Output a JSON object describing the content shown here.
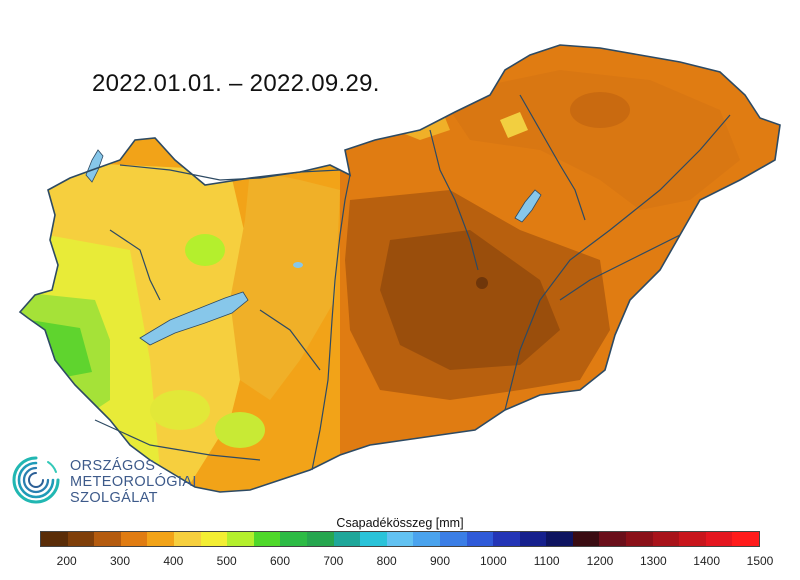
{
  "map": {
    "title": "2022.01.01. – 2022.09.29.",
    "colors": {
      "land_dry": "#e07b10",
      "land_very_dry": "#a9560b",
      "land_moderate": "#f0a020",
      "land_wet": "#f3c84a",
      "land_wetter": "#e6e640",
      "land_green": "#7fd83a",
      "water": "#87c7ea",
      "border": "#2d4a63"
    }
  },
  "logo": {
    "line1": "ORSZÁGOS",
    "line2": "METEOROLÓGIAI",
    "line3": "SZOLGÁLAT"
  },
  "legend": {
    "title": "Csapadékösszeg [mm]",
    "ticks": [
      "200",
      "300",
      "400",
      "500",
      "600",
      "700",
      "800",
      "900",
      "1000",
      "1100",
      "1200",
      "1300",
      "1400",
      "1500"
    ],
    "colors": [
      "#5a2d08",
      "#7f3f0a",
      "#b45b0f",
      "#e07c12",
      "#f2a318",
      "#f6cf3e",
      "#f3ee33",
      "#b4ef2d",
      "#4fd82a",
      "#2dbb45",
      "#26a64f",
      "#1fa79a",
      "#2ac3d9",
      "#62c2f2",
      "#4aa3ee",
      "#3b7ee6",
      "#2f5ad8",
      "#2435b6",
      "#16208d",
      "#0e1460",
      "#3a0c12",
      "#6a0f1a",
      "#8a1018",
      "#a8131a",
      "#c8151c",
      "#e4161f",
      "#ff1b1b"
    ]
  }
}
